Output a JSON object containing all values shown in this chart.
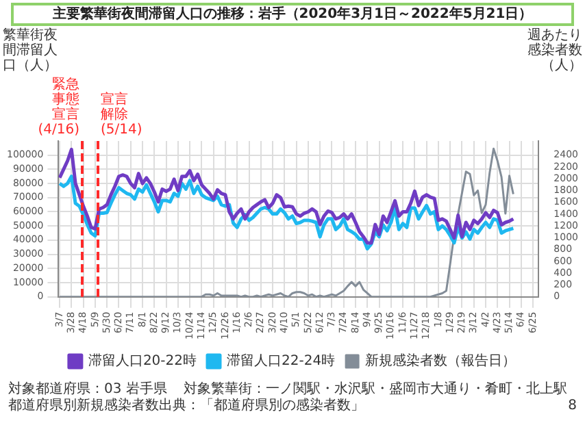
{
  "chart_data": {
    "type": "line",
    "title": "主要繁華街夜間滞留人口の推移：岩手（2020年3月1日～2022年5月21日）",
    "ylabel": "繁華街夜間滞留人口（人）",
    "y2label": "週あたり感染者数（人）",
    "x": [
      "2020-03-07",
      "2020-03-14",
      "2020-03-21",
      "2020-03-28",
      "2020-04-04",
      "2020-04-11",
      "2020-04-18",
      "2020-04-25",
      "2020-05-02",
      "2020-05-09",
      "2020-05-16",
      "2020-05-23",
      "2020-05-30",
      "2020-06-06",
      "2020-06-13",
      "2020-06-20",
      "2020-06-27",
      "2020-07-04",
      "2020-07-11",
      "2020-07-18",
      "2020-07-25",
      "2020-08-01",
      "2020-08-08",
      "2020-08-15",
      "2020-08-22",
      "2020-08-29",
      "2020-09-05",
      "2020-09-12",
      "2020-09-19",
      "2020-09-26",
      "2020-10-03",
      "2020-10-10",
      "2020-10-17",
      "2020-10-24",
      "2020-10-31",
      "2020-11-07",
      "2020-11-14",
      "2020-11-21",
      "2020-11-28",
      "2020-12-05",
      "2020-12-12",
      "2020-12-19",
      "2020-12-26",
      "2021-01-02",
      "2021-01-09",
      "2021-01-16",
      "2021-01-23",
      "2021-01-30",
      "2021-02-06",
      "2021-02-13",
      "2021-02-20",
      "2021-02-27",
      "2021-03-06",
      "2021-03-13",
      "2021-03-20",
      "2021-03-27",
      "2021-04-03",
      "2021-04-10",
      "2021-04-17",
      "2021-04-24",
      "2021-05-01",
      "2021-05-08",
      "2021-05-15",
      "2021-05-22",
      "2021-05-29",
      "2021-06-05",
      "2021-06-12",
      "2021-06-19",
      "2021-06-26",
      "2021-07-03",
      "2021-07-10",
      "2021-07-17",
      "2021-07-24",
      "2021-07-31",
      "2021-08-07",
      "2021-08-14",
      "2021-08-21",
      "2021-08-28",
      "2021-09-04",
      "2021-09-11",
      "2021-09-18",
      "2021-09-25",
      "2021-10-02",
      "2021-10-09",
      "2021-10-16",
      "2021-10-23",
      "2021-10-30",
      "2021-11-06",
      "2021-11-13",
      "2021-11-20",
      "2021-11-27",
      "2021-12-04",
      "2021-12-11",
      "2021-12-18",
      "2021-12-25",
      "2022-01-01",
      "2022-01-08",
      "2022-01-15",
      "2022-01-22",
      "2022-01-29",
      "2022-02-05",
      "2022-02-12",
      "2022-02-19",
      "2022-02-26",
      "2022-03-05",
      "2022-03-12",
      "2022-03-19",
      "2022-03-26",
      "2022-04-02",
      "2022-04-09",
      "2022-04-16",
      "2022-04-23",
      "2022-04-30",
      "2022-05-07",
      "2022-05-14",
      "2022-05-21"
    ],
    "series": [
      {
        "name": "滞留人口20-22時",
        "color": "#6f3cc4",
        "values": [
          84000,
          90000,
          96000,
          104000,
          80000,
          72000,
          64000,
          57000,
          49000,
          48000,
          62000,
          63000,
          65000,
          72000,
          78000,
          85000,
          86000,
          85000,
          80000,
          77000,
          87000,
          80000,
          84000,
          80000,
          74000,
          67000,
          76000,
          74500,
          76000,
          83000,
          75000,
          85000,
          85000,
          89000,
          82000,
          86500,
          79000,
          76000,
          73000,
          69000,
          75500,
          73000,
          72000,
          60000,
          55000,
          59000,
          62000,
          55000,
          60000,
          63000,
          65000,
          67000,
          68500,
          63000,
          66000,
          72000,
          70000,
          63500,
          64000,
          63500,
          58500,
          57000,
          59000,
          60000,
          62000,
          60000,
          51000,
          57000,
          60500,
          59500,
          55000,
          56000,
          58500,
          55000,
          58500,
          52500,
          46000,
          42400,
          38000,
          38000,
          51000,
          44000,
          57000,
          52500,
          60000,
          67800,
          57000,
          60000,
          60000,
          66000,
          74600,
          64400,
          70300,
          72000,
          70300,
          69500,
          54000,
          55000,
          53400,
          47500,
          41500,
          57600,
          42400,
          52500,
          47500,
          54000,
          51700,
          55000,
          59300,
          56000,
          61000,
          59300,
          50800,
          52500,
          53400,
          55000
        ]
      },
      {
        "name": "滞留人口22-24時",
        "color": "#1fb8f0",
        "values": [
          80000,
          78000,
          80000,
          85000,
          66000,
          64000,
          58000,
          51000,
          45000,
          43000,
          59000,
          59000,
          59500,
          66000,
          72000,
          77000,
          75000,
          73000,
          72000,
          69000,
          76000,
          74000,
          79000,
          73000,
          67000,
          60000,
          68000,
          68000,
          67000,
          73000,
          71000,
          80000,
          76000,
          82000,
          73000,
          78000,
          72000,
          70000,
          69000,
          68000,
          71000,
          65000,
          64000,
          65000,
          52000,
          49000,
          55000,
          58000,
          54000,
          56000,
          59000,
          62000,
          63000,
          62000,
          58500,
          58500,
          62000,
          59300,
          55000,
          57000,
          51700,
          52500,
          54000,
          54000,
          53400,
          52500,
          42400,
          50800,
          55000,
          55000,
          47500,
          50000,
          55000,
          47500,
          46000,
          44000,
          40700,
          40700,
          33900,
          37300,
          45800,
          42400,
          50800,
          46600,
          52500,
          62700,
          47500,
          51700,
          49000,
          62700,
          62700,
          55000,
          60000,
          64400,
          58500,
          60000,
          47500,
          50000,
          47500,
          43200,
          38100,
          49000,
          41500,
          45800,
          40700,
          47500,
          45000,
          49000,
          52500,
          49000,
          55000,
          54000,
          45000,
          46600,
          47500,
          48300
        ]
      },
      {
        "name": "新規感染者数（報告日）",
        "color": "#838d98",
        "axis": "y2",
        "values": [
          0,
          0,
          0,
          0,
          0,
          0,
          0,
          0,
          0,
          0,
          0,
          0,
          0,
          0,
          0,
          0,
          0,
          0,
          0,
          0,
          0,
          0,
          0,
          0,
          0,
          0,
          0,
          0,
          0,
          0,
          0,
          0,
          0,
          0,
          0,
          0,
          0,
          40,
          40,
          20,
          60,
          20,
          20,
          20,
          20,
          20,
          0,
          20,
          0,
          0,
          20,
          0,
          20,
          40,
          20,
          40,
          60,
          20,
          0,
          60,
          80,
          80,
          60,
          20,
          40,
          0,
          20,
          0,
          20,
          40,
          20,
          60,
          100,
          180,
          250,
          180,
          250,
          120,
          60,
          0,
          0,
          0,
          0,
          0,
          0,
          0,
          0,
          0,
          0,
          0,
          0,
          0,
          0,
          0,
          0,
          20,
          40,
          60,
          100,
          560,
          1040,
          1400,
          1760,
          2120,
          2080,
          1720,
          1800,
          1420,
          1560,
          2100,
          2510,
          2300,
          2030,
          1410,
          2050,
          1740
        ]
      }
    ],
    "xlim": [
      "2020-03-05",
      "2022-07-05"
    ],
    "xticks": [
      {
        "value": "2020-03-07",
        "label": "3/7"
      },
      {
        "value": "2020-03-28",
        "label": "3/28"
      },
      {
        "value": "2020-04-18",
        "label": "4/18"
      },
      {
        "value": "2020-05-09",
        "label": "5/9"
      },
      {
        "value": "2020-05-30",
        "label": "5/30"
      },
      {
        "value": "2020-06-20",
        "label": "6/20"
      },
      {
        "value": "2020-07-11",
        "label": "7/11"
      },
      {
        "value": "2020-08-01",
        "label": "8/1"
      },
      {
        "value": "2020-08-22",
        "label": "8/22"
      },
      {
        "value": "2020-09-12",
        "label": "9/12"
      },
      {
        "value": "2020-10-03",
        "label": "10/3"
      },
      {
        "value": "2020-10-24",
        "label": "10/24"
      },
      {
        "value": "2020-11-14",
        "label": "11/14"
      },
      {
        "value": "2020-12-05",
        "label": "12/5"
      },
      {
        "value": "2020-12-26",
        "label": "12/26"
      },
      {
        "value": "2021-01-16",
        "label": "1/16"
      },
      {
        "value": "2021-02-06",
        "label": "2/6"
      },
      {
        "value": "2021-02-27",
        "label": "2/27"
      },
      {
        "value": "2021-03-20",
        "label": "3/20"
      },
      {
        "value": "2021-04-10",
        "label": "4/10"
      },
      {
        "value": "2021-05-01",
        "label": "5/1"
      },
      {
        "value": "2021-05-22",
        "label": "5/22"
      },
      {
        "value": "2021-06-12",
        "label": "6/12"
      },
      {
        "value": "2021-07-03",
        "label": "7/3"
      },
      {
        "value": "2021-07-24",
        "label": "7/24"
      },
      {
        "value": "2021-08-14",
        "label": "8/14"
      },
      {
        "value": "2021-09-04",
        "label": "9/4"
      },
      {
        "value": "2021-09-25",
        "label": "9/25"
      },
      {
        "value": "2021-10-16",
        "label": "10/16"
      },
      {
        "value": "2021-11-06",
        "label": "11/6"
      },
      {
        "value": "2021-11-27",
        "label": "11/27"
      },
      {
        "value": "2021-12-18",
        "label": "12/18"
      },
      {
        "value": "2022-01-08",
        "label": "1/8"
      },
      {
        "value": "2022-01-29",
        "label": "1/29"
      },
      {
        "value": "2022-02-19",
        "label": "2/19"
      },
      {
        "value": "2022-03-12",
        "label": "3/12"
      },
      {
        "value": "2022-04-02",
        "label": "4/2"
      },
      {
        "value": "2022-04-23",
        "label": "4/23"
      },
      {
        "value": "2022-05-14",
        "label": "5/14"
      },
      {
        "value": "2022-06-04",
        "label": "6/4"
      },
      {
        "value": "2022-06-25",
        "label": "6/25"
      }
    ],
    "ylim": [
      0,
      110000
    ],
    "yticks": [
      0,
      10000,
      20000,
      30000,
      40000,
      50000,
      60000,
      70000,
      80000,
      90000,
      100000
    ],
    "y2lim": [
      0,
      2640
    ],
    "y2ticks": [
      0,
      200,
      400,
      600,
      800,
      1000,
      1200,
      1400,
      1600,
      1800,
      2000,
      2200,
      2400
    ],
    "ref_lines": [
      {
        "axis": "x",
        "value": "2020-04-16",
        "label": "緊急事態宣言(4/16)",
        "color": "#ff2a2a",
        "line_style": "dashed"
      },
      {
        "axis": "x",
        "value": "2020-05-14",
        "label": "宣言解除(5/14)",
        "color": "#ff2a2a",
        "line_style": "dashed"
      }
    ],
    "grid": true,
    "legend": "bottom",
    "marker": "none",
    "line_style": "solid",
    "annotations": [
      "対象都道府県：03 岩手県",
      "対象繁華街：一ノ関駅・水沢駅・盛岡市大通り・肴町・北上駅",
      "都道府県別新規感染者数出典：「都道府県別の感染者数」",
      "8"
    ]
  }
}
